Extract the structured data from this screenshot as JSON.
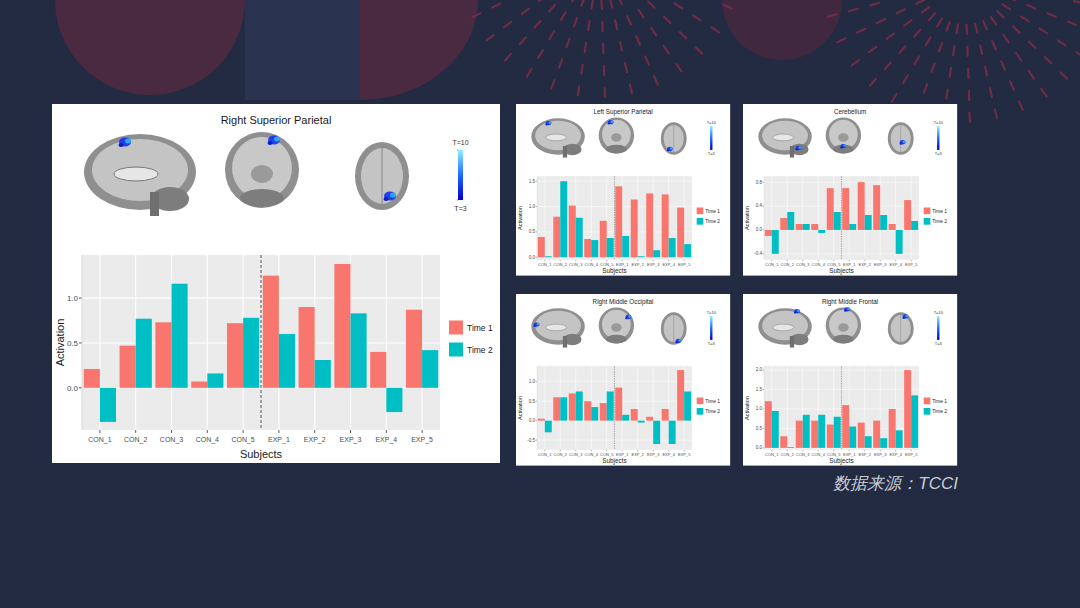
{
  "chart_data": [
    {
      "type": "bar",
      "title": "Right Superior Parietal",
      "x_label": "Subjects",
      "y_label": "Activation",
      "categories": [
        "CON_1",
        "CON_2",
        "CON_3",
        "CON_4",
        "CON_5",
        "EXP_1",
        "EXP_2",
        "EXP_3",
        "EXP_4",
        "EXP_5"
      ],
      "series": [
        {
          "name": "Time 1",
          "color": "#f8766d",
          "values": [
            0.21,
            0.47,
            0.73,
            0.07,
            0.72,
            1.25,
            0.9,
            1.38,
            0.4,
            0.87
          ]
        },
        {
          "name": "Time 2",
          "color": "#00bfc4",
          "values": [
            -0.38,
            0.77,
            1.16,
            0.16,
            0.78,
            0.6,
            0.31,
            0.83,
            -0.27,
            0.42
          ]
        }
      ],
      "ylim": [
        -0.47,
        1.48
      ],
      "yticks": [
        {
          "value": 0,
          "label": "0.0"
        },
        0.5,
        {
          "value": 1,
          "label": "1.0"
        }
      ],
      "grid": true,
      "legend": "right",
      "colorbar": {
        "range": [
          3,
          10
        ],
        "ticks": [
          {
            "value": 10,
            "label": "T=10"
          },
          {
            "value": 3,
            "label": "T=3"
          }
        ]
      }
    },
    {
      "type": "bar",
      "title": "Left Superior Parietal",
      "x_label": "Subjects",
      "y_label": "Activation",
      "categories": [
        "CON_1",
        "CON_2",
        "CON_3",
        "CON_4",
        "CON_5",
        "EXP_1",
        "EXP_2",
        "EXP_3",
        "EXP_4",
        "EXP_5"
      ],
      "series": [
        {
          "name": "Time 1",
          "color": "#f8766d",
          "values": [
            0.4,
            0.8,
            1.02,
            0.36,
            0.72,
            1.4,
            1.14,
            1.26,
            1.24,
            0.98
          ]
        },
        {
          "name": "Time 2",
          "color": "#00bfc4",
          "values": [
            0.02,
            1.5,
            0.78,
            0.34,
            0.38,
            0.42,
            0.02,
            0.14,
            0.38,
            0.26
          ]
        }
      ],
      "ylim": [
        -0.05,
        1.6
      ],
      "yticks": [
        {
          "value": 0,
          "label": "0.0"
        },
        0.5,
        {
          "value": 1,
          "label": "1.0"
        },
        1.5
      ],
      "grid": true,
      "legend": "right",
      "colorbar": {
        "range": [
          3,
          10
        ],
        "ticks": [
          {
            "value": 10,
            "label": "T=10"
          },
          {
            "value": 3,
            "label": "T=3"
          }
        ]
      }
    },
    {
      "type": "bar",
      "title": "Cerebellum",
      "x_label": "Subjects",
      "y_label": "Activation",
      "categories": [
        "CON_1",
        "CON_2",
        "CON_3",
        "CON_4",
        "CON_5",
        "EXP_1",
        "EXP_2",
        "EXP_3",
        "EXP_4",
        "EXP_5"
      ],
      "series": [
        {
          "name": "Time 1",
          "color": "#f8766d",
          "values": [
            -0.1,
            0.2,
            0.1,
            0.1,
            0.7,
            0.7,
            0.8,
            0.75,
            0.1,
            0.5
          ]
        },
        {
          "name": "Time 2",
          "color": "#00bfc4",
          "values": [
            -0.4,
            0.3,
            0.1,
            -0.05,
            0.3,
            0.1,
            0.25,
            0.25,
            -0.4,
            0.15
          ]
        }
      ],
      "ylim": [
        -0.5,
        0.9
      ],
      "yticks": [
        -0.4,
        {
          "value": 0,
          "label": "0.0"
        },
        0.4,
        0.8
      ],
      "grid": true,
      "legend": "right",
      "colorbar": {
        "range": [
          3,
          10
        ],
        "ticks": [
          {
            "value": 10,
            "label": "T=10"
          },
          {
            "value": 3,
            "label": "T=3"
          }
        ]
      }
    },
    {
      "type": "bar",
      "title": "Right Middle Occipital",
      "x_label": "Subjects",
      "y_label": "Activation",
      "categories": [
        "CON_1",
        "CON_2",
        "CON_3",
        "CON_4",
        "CON_5",
        "EXP_1",
        "EXP_2",
        "EXP_3",
        "EXP_4",
        "EXP_5"
      ],
      "series": [
        {
          "name": "Time 1",
          "color": "#f8766d",
          "values": [
            0.05,
            0.6,
            0.7,
            0.5,
            0.45,
            0.85,
            0.3,
            0.1,
            0.3,
            1.3
          ]
        },
        {
          "name": "Time 2",
          "color": "#00bfc4",
          "values": [
            -0.3,
            0.6,
            0.75,
            0.35,
            0.75,
            0.15,
            -0.05,
            -0.6,
            -0.6,
            0.75
          ]
        }
      ],
      "ylim": [
        -0.75,
        1.4
      ],
      "yticks": [
        -0.5,
        {
          "value": 0,
          "label": "0.0"
        },
        0.5,
        {
          "value": 1,
          "label": "1.0"
        }
      ],
      "grid": true,
      "legend": "right",
      "colorbar": {
        "range": [
          3,
          10
        ],
        "ticks": [
          {
            "value": 10,
            "label": "T=10"
          },
          {
            "value": 3,
            "label": "T=3"
          }
        ]
      }
    },
    {
      "type": "bar",
      "title": "Right Middle Frontal",
      "x_label": "Subjects",
      "y_label": "Activation",
      "categories": [
        "CON_1",
        "CON_2",
        "CON_3",
        "CON_4",
        "CON_5",
        "EXP_1",
        "EXP_2",
        "EXP_3",
        "EXP_4",
        "EXP_5"
      ],
      "series": [
        {
          "name": "Time 1",
          "color": "#f8766d",
          "values": [
            1.2,
            0.3,
            0.7,
            0.7,
            0.6,
            1.1,
            0.65,
            0.7,
            1.0,
            2.0
          ]
        },
        {
          "name": "Time 2",
          "color": "#00bfc4",
          "values": [
            0.95,
            0.02,
            0.85,
            0.85,
            0.8,
            0.55,
            0.3,
            0.25,
            0.45,
            1.35
          ]
        }
      ],
      "ylim": [
        -0.05,
        2.1
      ],
      "yticks": [
        {
          "value": 0,
          "label": "0.0"
        },
        0.5,
        {
          "value": 1,
          "label": "1.0"
        },
        1.5,
        {
          "value": 2,
          "label": "2.0"
        }
      ],
      "grid": true,
      "legend": "right",
      "colorbar": {
        "range": [
          3,
          10
        ],
        "ticks": [
          {
            "value": 10,
            "label": "T=10"
          },
          {
            "value": 3,
            "label": "T=3"
          }
        ]
      }
    }
  ],
  "source": "数据来源：TCCI"
}
